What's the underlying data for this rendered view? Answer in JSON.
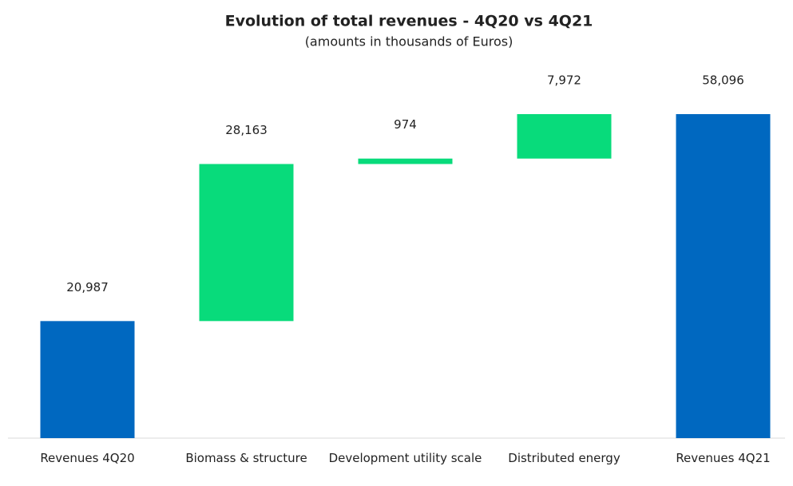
{
  "chart_data": {
    "type": "waterfall",
    "title": "Evolution of total revenues - 4Q20 vs 4Q21",
    "subtitle": "(amounts in thousands of Euros)",
    "categories": [
      "Revenues 4Q20",
      "Biomass & structure",
      "Development utility scale",
      "Distributed energy",
      "Revenues 4Q21"
    ],
    "values": [
      20987,
      28163,
      974,
      7972,
      58096
    ],
    "value_labels": [
      "20,987",
      "28,163",
      "974",
      "7,972",
      "58,096"
    ],
    "measure": [
      "absolute",
      "relative",
      "relative",
      "relative",
      "total"
    ],
    "colors": [
      "#0068c0",
      "#08db7b",
      "#08db7b",
      "#08db7b",
      "#0068c0"
    ]
  }
}
